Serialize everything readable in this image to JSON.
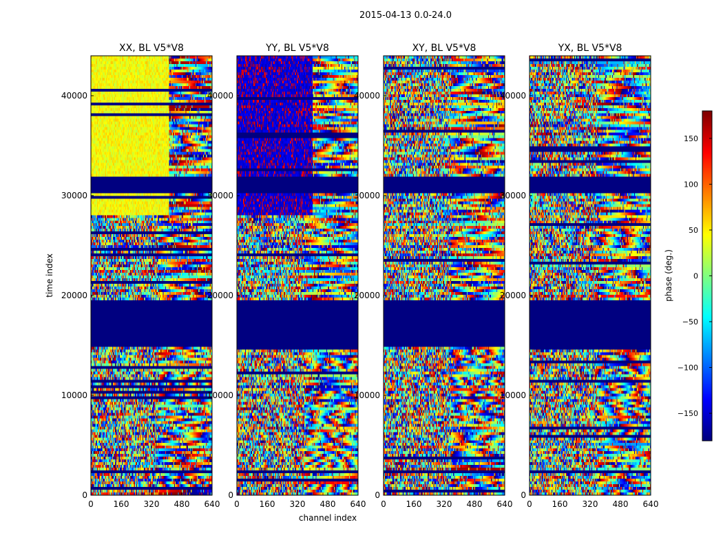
{
  "figure": {
    "suptitle": "2015-04-13 0.0-24.0",
    "xlabel": "channel index",
    "ylabel": "time index"
  },
  "chart_data": {
    "type": "heatmap",
    "x_range": [
      0,
      640
    ],
    "y_range": [
      0,
      44000
    ],
    "x_ticks": [
      0,
      160,
      320,
      480,
      640
    ],
    "y_ticks": [
      0,
      10000,
      20000,
      30000,
      40000
    ],
    "panels": [
      {
        "title": "XX, BL V5*V8"
      },
      {
        "title": "YY, BL V5*V8"
      },
      {
        "title": "XY, BL V5*V8"
      },
      {
        "title": "YX, BL V5*V8"
      }
    ],
    "colorbar": {
      "label": "phase (deg.)",
      "range": [
        -180,
        180
      ],
      "ticks": [
        -150,
        -100,
        -50,
        0,
        50,
        100,
        150
      ],
      "colormap": "jet"
    },
    "flagged_time_bands": [
      [
        14800,
        19400
      ],
      [
        30200,
        32000
      ]
    ]
  }
}
